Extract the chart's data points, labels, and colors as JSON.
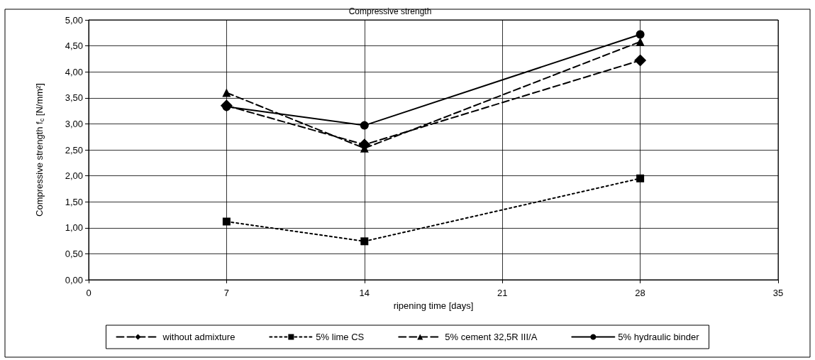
{
  "chart_data": {
    "type": "line",
    "title": "Compressive strength",
    "xlabel": "ripening time [days]",
    "ylabel": "Compressive strength f$_{c}$ [N/mm²]",
    "x": [
      7,
      14,
      28
    ],
    "series": [
      {
        "name": "without admixture",
        "color": "#000000",
        "values": [
          3.35,
          2.6,
          4.22
        ],
        "marker": "diamond",
        "line_style": "dashed"
      },
      {
        "name": "5% lime CS",
        "color": "#000000",
        "values": [
          1.12,
          0.74,
          1.95
        ],
        "marker": "square",
        "line_style": "dotted"
      },
      {
        "name": "5% cement 32,5R III/A",
        "color": "#000000",
        "values": [
          3.6,
          2.53,
          4.58
        ],
        "marker": "triangle",
        "line_style": "dashed"
      },
      {
        "name": "5% hydraulic binder",
        "color": "#000000",
        "values": [
          3.33,
          2.97,
          4.72
        ],
        "marker": "circle",
        "line_style": "solid"
      }
    ],
    "xlim": [
      0,
      35
    ],
    "xticks": [
      0,
      7,
      14,
      21,
      28,
      35
    ],
    "ylim": [
      0,
      5
    ],
    "yticks": [
      {
        "value": 0,
        "label": "0,00"
      },
      {
        "value": 0.5,
        "label": "0,50"
      },
      {
        "value": 1,
        "label": "1,00"
      },
      {
        "value": 1.5,
        "label": "1,50"
      },
      {
        "value": 2,
        "label": "2,00"
      },
      {
        "value": 2.5,
        "label": "2,50"
      },
      {
        "value": 3,
        "label": "3,00"
      },
      {
        "value": 3.5,
        "label": "3,50"
      },
      {
        "value": 4,
        "label": "4,00"
      },
      {
        "value": 4.5,
        "label": "4,50"
      },
      {
        "value": 5,
        "label": "5,00"
      }
    ],
    "grid": true,
    "legend": "bottom"
  }
}
